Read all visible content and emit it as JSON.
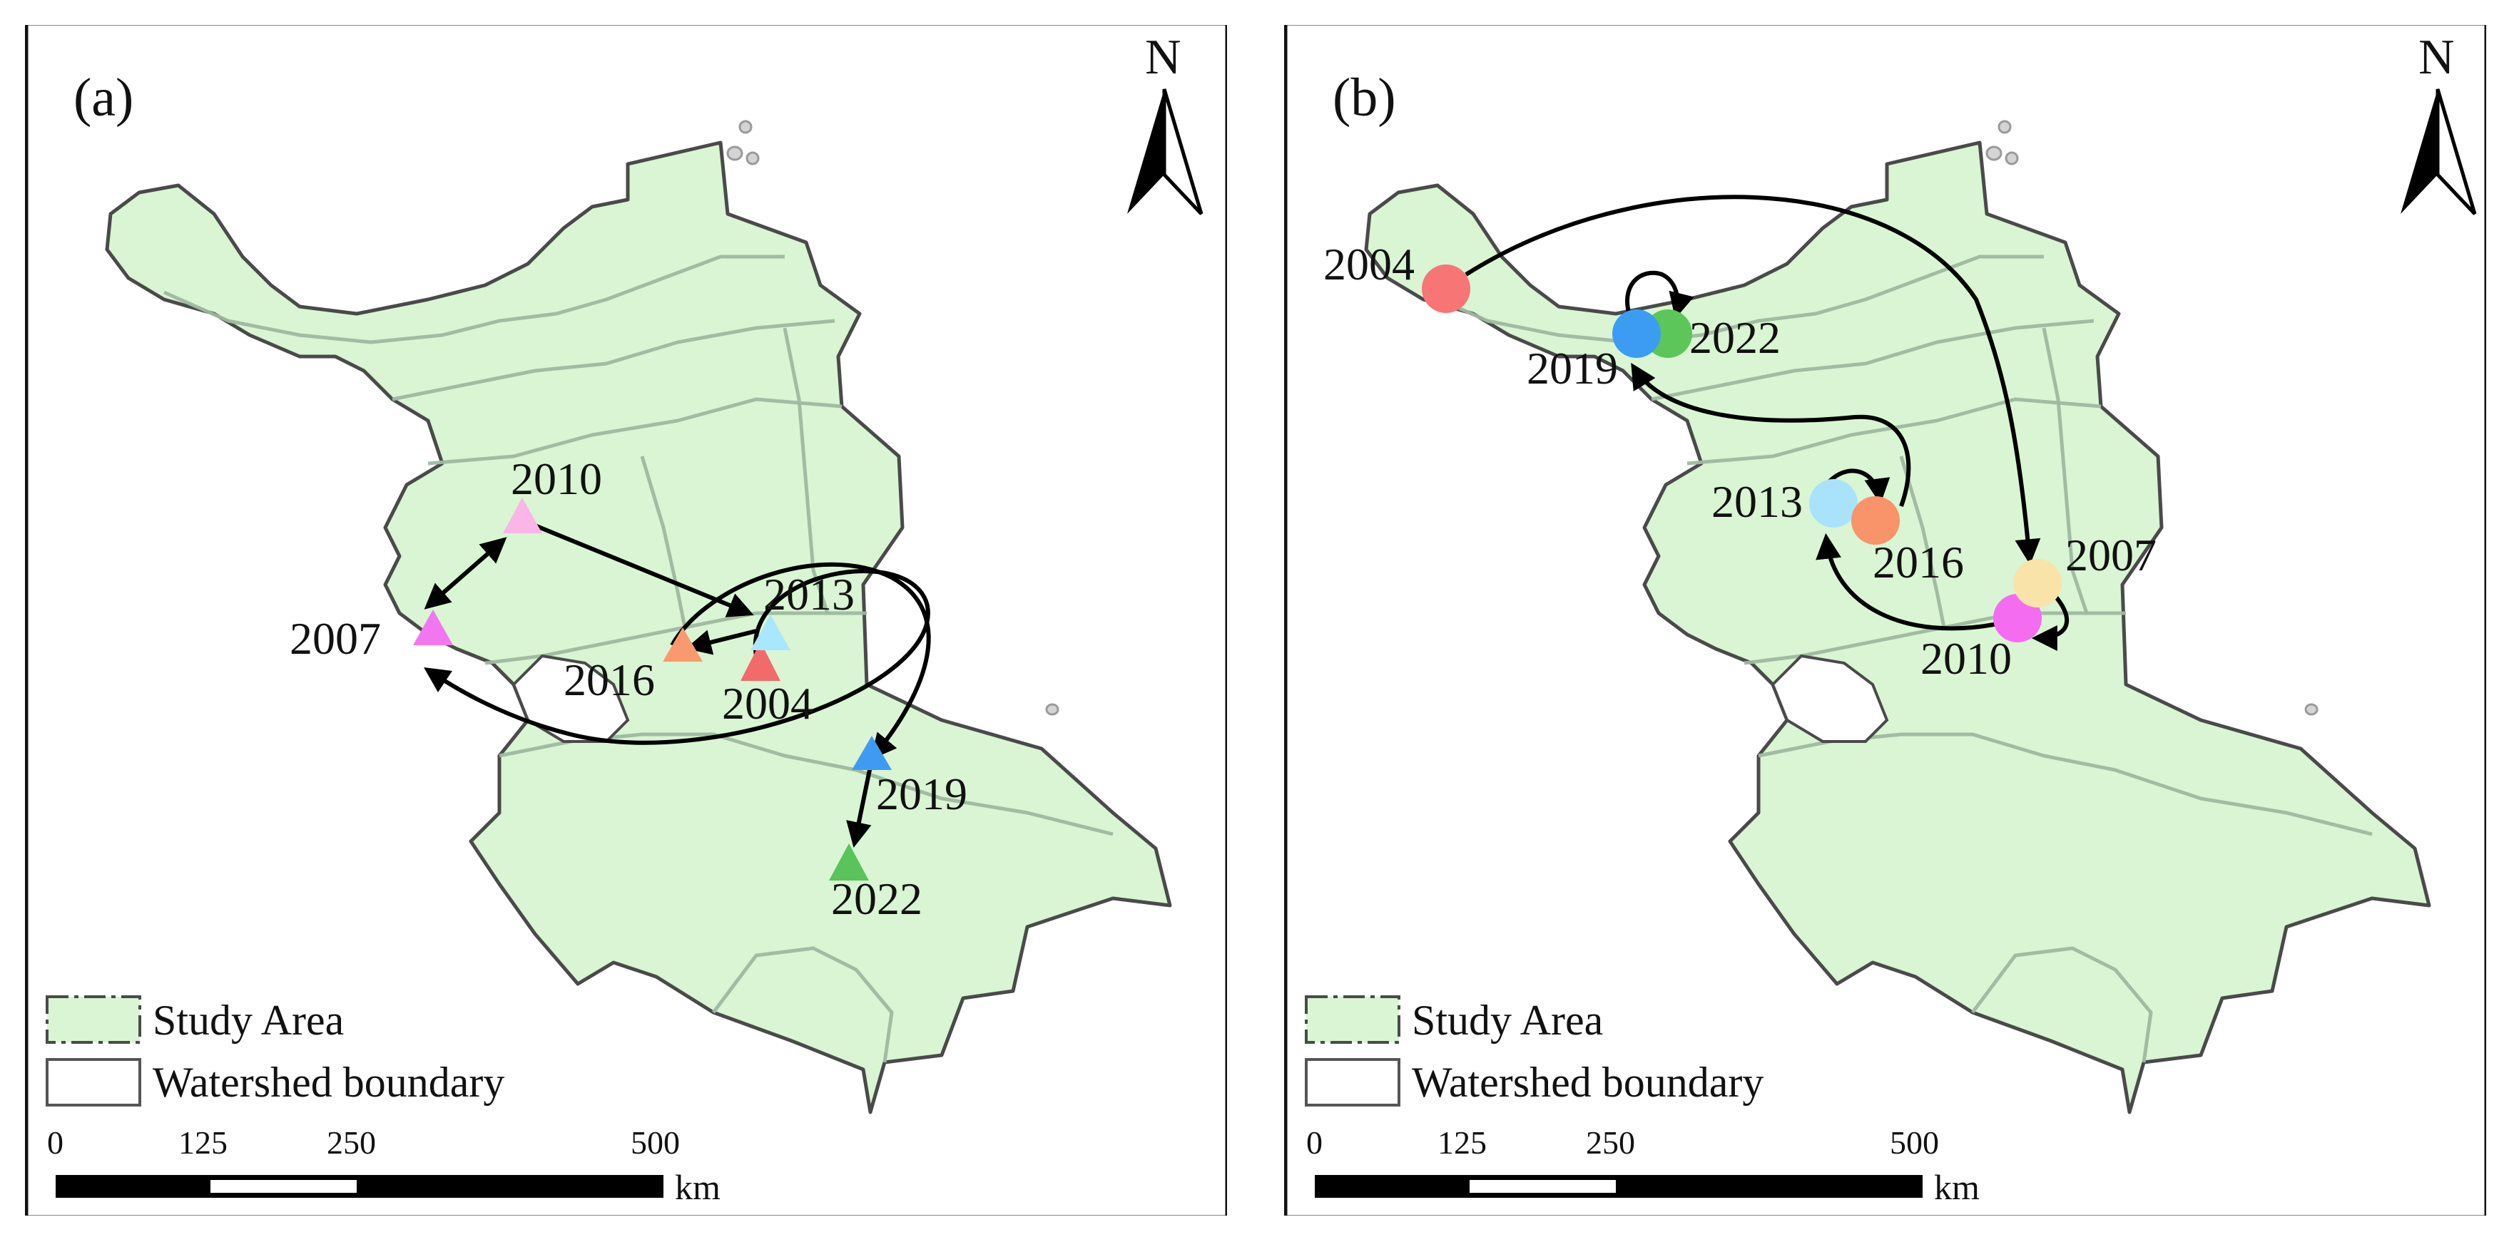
{
  "panels": [
    {
      "label": "(a)",
      "marker_shape": "triangle",
      "points": [
        {
          "year": "2004",
          "color": "#f26b6b"
        },
        {
          "year": "2007",
          "color": "#f276f0"
        },
        {
          "year": "2010",
          "color": "#f9b6e6"
        },
        {
          "year": "2013",
          "color": "#a9e6ff"
        },
        {
          "year": "2016",
          "color": "#f89a6e"
        },
        {
          "year": "2019",
          "color": "#3f9bf2"
        },
        {
          "year": "2022",
          "color": "#58c45a"
        }
      ]
    },
    {
      "label": "(b)",
      "marker_shape": "circle",
      "points": [
        {
          "year": "2004",
          "color": "#f77575"
        },
        {
          "year": "2007",
          "color": "#f9e3a9"
        },
        {
          "year": "2010",
          "color": "#f46df0"
        },
        {
          "year": "2013",
          "color": "#a9e3fb"
        },
        {
          "year": "2016",
          "color": "#f8936a"
        },
        {
          "year": "2019",
          "color": "#3b9cf2"
        },
        {
          "year": "2022",
          "color": "#5cc65a"
        }
      ]
    }
  ],
  "legend": {
    "study_area": "Study Area",
    "watershed": "Watershed boundary",
    "study_area_color": "#d9f5d3",
    "watershed_color": "#ffffff"
  },
  "north_arrow": {
    "label": "N"
  },
  "scale_bar": {
    "ticks": [
      "0",
      "125",
      "250",
      "500"
    ],
    "unit": "km"
  },
  "map_colors": {
    "fill": "#d9f5d3",
    "outline": "#4a4a4a",
    "watershed_lines": "#9fb8a0",
    "arrows": "#000000"
  }
}
